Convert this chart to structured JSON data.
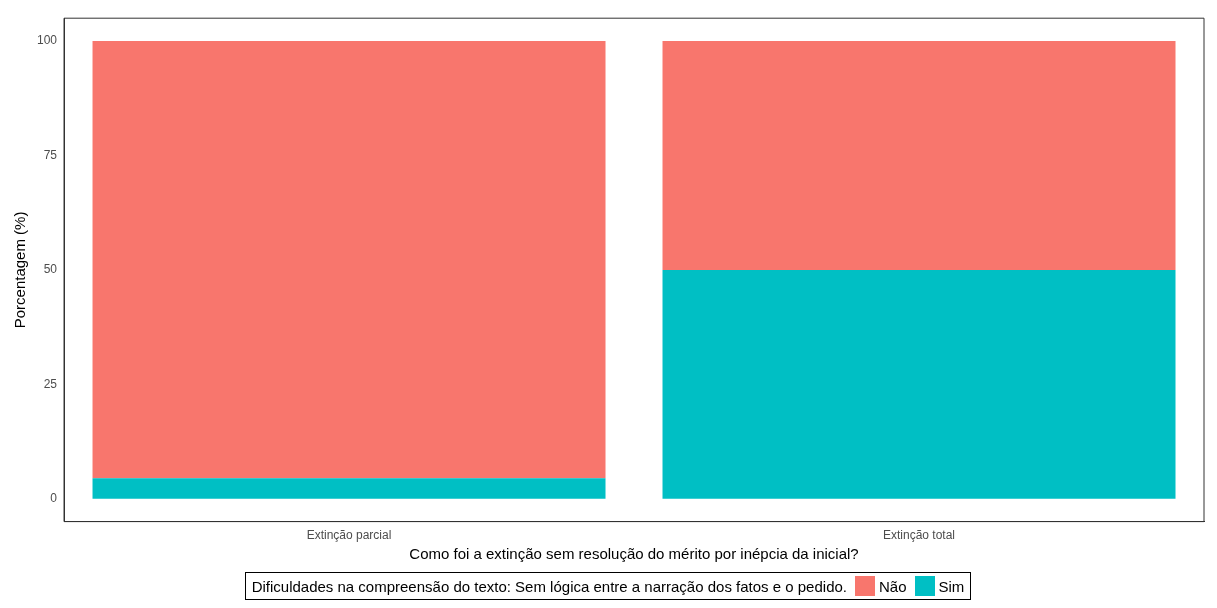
{
  "chart_data": {
    "type": "bar",
    "stacked": true,
    "xlabel": "Como foi a extinção sem resolução do mérito por inépcia da inicial?",
    "ylabel": "Porcentagem (%)",
    "legend_title": "Dificuldades na compreensão do texto: Sem lógica entre a narração dos fatos e o pedido.",
    "categories": [
      "Extinção parcial",
      "Extinção total"
    ],
    "series": [
      {
        "name": "Sim",
        "color": "#00bfc4",
        "values": [
          4.5,
          50
        ]
      },
      {
        "name": "Não",
        "color": "#f8766d",
        "values": [
          95.5,
          50
        ]
      }
    ],
    "ylim": [
      -5,
      105
    ],
    "yticks": [
      0,
      25,
      50,
      75,
      100
    ],
    "grid": false,
    "legend": "bottom"
  }
}
